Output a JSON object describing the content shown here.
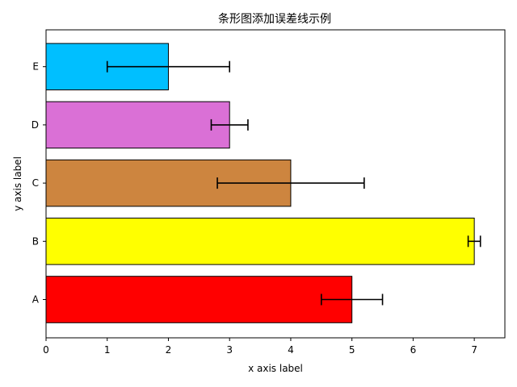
{
  "chart_data": {
    "type": "bar",
    "orientation": "horizontal",
    "title": "条形图添加误差线示例",
    "xlabel": "x axis label",
    "ylabel": "y axis label",
    "categories": [
      "A",
      "B",
      "C",
      "D",
      "E"
    ],
    "values": [
      5,
      7,
      4,
      3,
      2
    ],
    "errors": [
      0.5,
      0.1,
      1.2,
      0.3,
      1.0
    ],
    "colors": [
      "#ff0000",
      "#ffff00",
      "#cd853f",
      "#da70d6",
      "#00bfff"
    ],
    "xlim": [
      0,
      7.5
    ],
    "xticks": [
      0,
      1,
      2,
      3,
      4,
      5,
      6,
      7
    ],
    "grid": false,
    "legend": "none"
  }
}
